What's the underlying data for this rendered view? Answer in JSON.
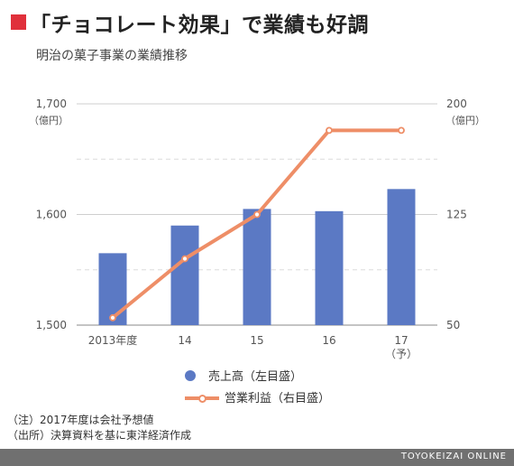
{
  "title": "「チョコレート効果」で業績も好調",
  "subtitle": "明治の菓子事業の業績推移",
  "colors": {
    "bar": "#5b79c4",
    "line": "#ee8e67",
    "accent": "#e0303b",
    "footer_bg": "#707070"
  },
  "chart_data": {
    "type": "bar+line",
    "categories": [
      "2013年度",
      "14",
      "15",
      "16",
      "17"
    ],
    "category_sublabels": [
      "",
      "",
      "",
      "",
      "（予）"
    ],
    "left_axis": {
      "unit": "（億円）",
      "ticks": [
        "1,500",
        "1,600",
        "1,700"
      ],
      "range": [
        1500,
        1700
      ]
    },
    "right_axis": {
      "unit": "（億円）",
      "ticks": [
        "50",
        "125",
        "200"
      ],
      "range": [
        50,
        200
      ]
    },
    "grid": true,
    "series": [
      {
        "name": "売上高（左目盛）",
        "type": "bar",
        "axis": "left",
        "values": [
          1565,
          1590,
          1605,
          1603,
          1623
        ]
      },
      {
        "name": "営業利益（右目盛）",
        "type": "line",
        "axis": "right",
        "values": [
          55,
          95,
          125,
          182,
          182
        ]
      }
    ],
    "legend_position": "bottom"
  },
  "notes": [
    "（注）2017年度は会社予想値",
    "（出所）決算資料を基に東洋経済作成"
  ],
  "brand": "TOYOKEIZAI ONLINE"
}
